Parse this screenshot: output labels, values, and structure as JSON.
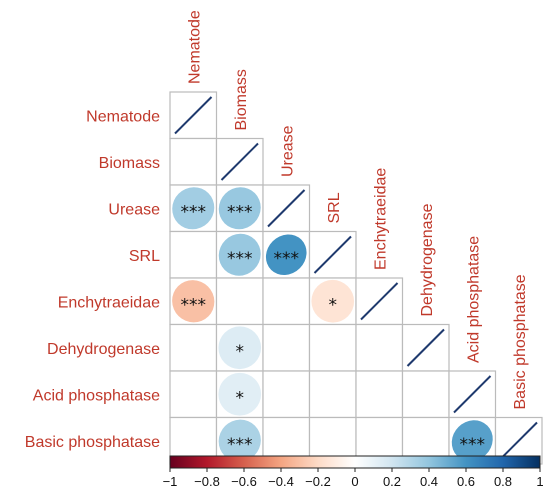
{
  "chart_data": {
    "type": "heatmap",
    "variables": [
      "Nematode",
      "Biomass",
      "Urease",
      "SRL",
      "Enchytraeidae",
      "Dehydrogenase",
      "Acid phosphatase",
      "Basic phosphatase"
    ],
    "cells": [
      {
        "row": "Urease",
        "col": "Nematode",
        "r": 0.35,
        "stars": "***"
      },
      {
        "row": "Urease",
        "col": "Biomass",
        "r": 0.38,
        "stars": "***"
      },
      {
        "row": "SRL",
        "col": "Biomass",
        "r": 0.38,
        "stars": "***"
      },
      {
        "row": "SRL",
        "col": "Urease",
        "r": 0.6,
        "stars": "***"
      },
      {
        "row": "Enchytraeidae",
        "col": "Nematode",
        "r": -0.3,
        "stars": "***"
      },
      {
        "row": "Enchytraeidae",
        "col": "SRL",
        "r": -0.15,
        "stars": "*"
      },
      {
        "row": "Dehydrogenase",
        "col": "Biomass",
        "r": 0.15,
        "stars": "*"
      },
      {
        "row": "Acid phosphatase",
        "col": "Biomass",
        "r": 0.13,
        "stars": "*"
      },
      {
        "row": "Basic phosphatase",
        "col": "Biomass",
        "r": 0.32,
        "stars": "***"
      },
      {
        "row": "Basic phosphatase",
        "col": "Acid phosphatase",
        "r": 0.55,
        "stars": "***"
      }
    ],
    "colorbar": {
      "range": [
        -1,
        1
      ],
      "ticks": [
        "−1",
        "−0.8",
        "−0.6",
        "−0.4",
        "−0.2",
        "0",
        "0.2",
        "0.4",
        "0.6",
        "0.8",
        "1"
      ],
      "colors": [
        "#67001f",
        "#b2182b",
        "#d6604d",
        "#f4a582",
        "#fddbc7",
        "#ffffff",
        "#d1e5f0",
        "#92c5de",
        "#4393c3",
        "#2166ac",
        "#053061"
      ]
    },
    "label_color": "#c0392b",
    "grid_color": "#bbbbbb",
    "diagonal_color": "#1f3a6e",
    "title": "",
    "xlabel": "",
    "ylabel": ""
  }
}
